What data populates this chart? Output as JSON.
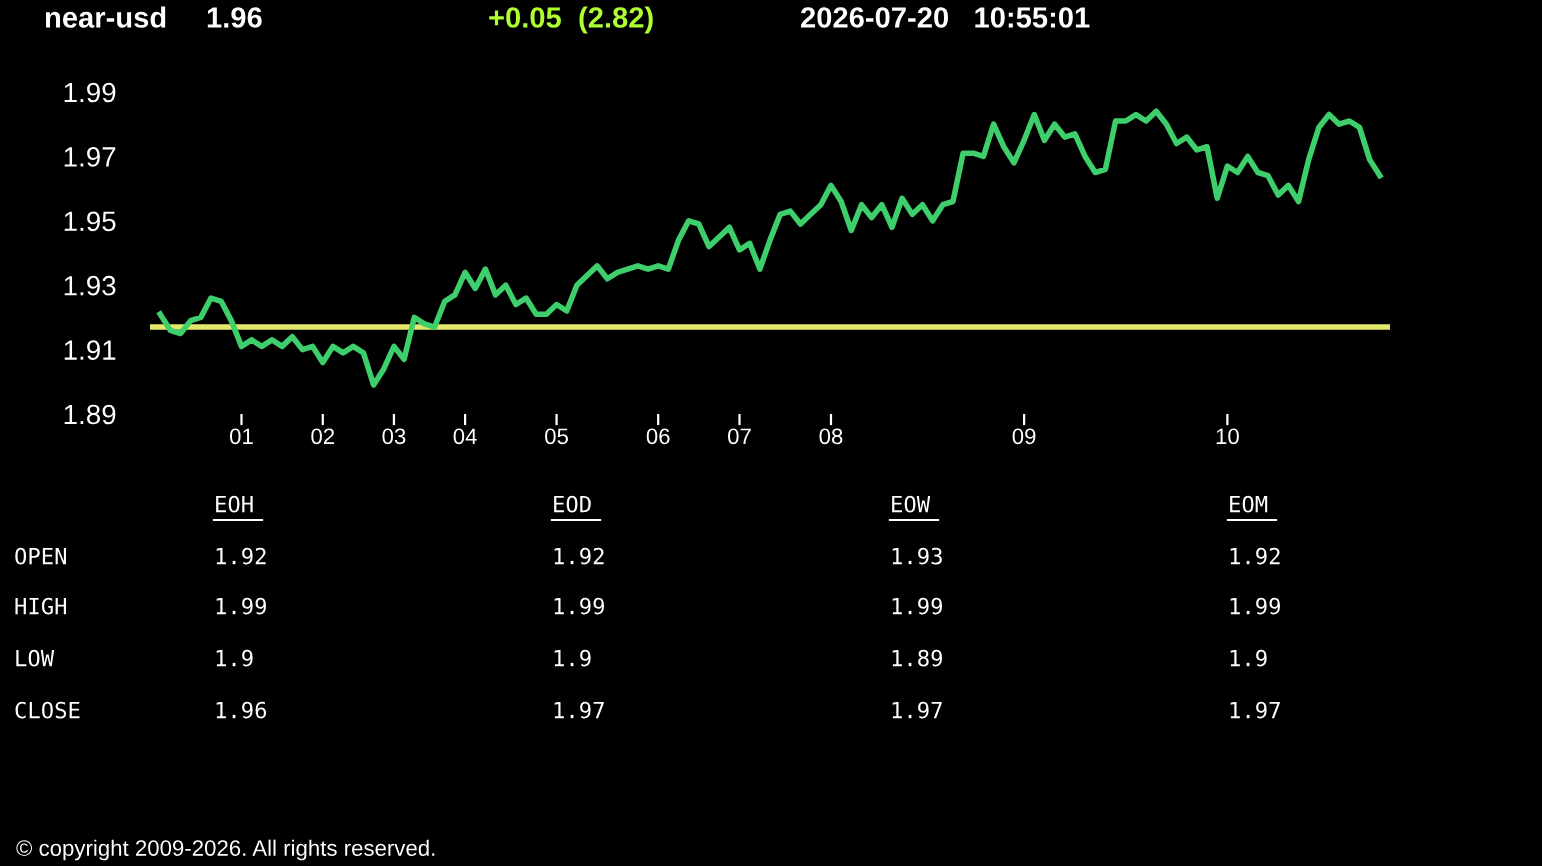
{
  "chart_data": {
    "type": "line",
    "title": "near-usd",
    "categories": [
      null,
      null,
      null,
      null,
      null,
      null,
      null,
      null,
      "01",
      null,
      null,
      null,
      null,
      null,
      null,
      null,
      "02",
      null,
      null,
      null,
      null,
      null,
      null,
      "03",
      null,
      null,
      null,
      null,
      null,
      null,
      "04",
      null,
      null,
      null,
      null,
      null,
      null,
      null,
      null,
      "05",
      null,
      null,
      null,
      null,
      null,
      null,
      null,
      null,
      null,
      "06",
      null,
      null,
      null,
      null,
      null,
      null,
      null,
      "07",
      null,
      null,
      null,
      null,
      null,
      null,
      null,
      null,
      "08",
      null,
      null,
      null,
      null,
      null,
      null,
      null,
      null,
      null,
      null,
      null,
      null,
      null,
      null,
      null,
      null,
      null,
      null,
      "09",
      null,
      null,
      null,
      null,
      null,
      null,
      null,
      null,
      null,
      null,
      null,
      null,
      null,
      null,
      null,
      null,
      null,
      null,
      null,
      "10",
      null,
      null,
      null,
      null,
      null,
      null,
      null,
      null,
      null,
      null,
      null,
      null,
      null,
      null,
      null
    ],
    "series": [
      {
        "color": "#3ecf6c",
        "values": [
          1.921,
          1.916,
          1.915,
          1.919,
          1.92,
          1.926,
          1.925,
          1.919,
          1.911,
          1.913,
          1.911,
          1.913,
          1.911,
          1.914,
          1.91,
          1.911,
          1.906,
          1.911,
          1.909,
          1.911,
          1.909,
          1.899,
          1.904,
          1.911,
          1.907,
          1.92,
          1.918,
          1.917,
          1.925,
          1.927,
          1.934,
          1.929,
          1.935,
          1.927,
          1.93,
          1.924,
          1.926,
          1.921,
          1.921,
          1.924,
          1.922,
          1.93,
          1.933,
          1.936,
          1.932,
          1.934,
          1.935,
          1.936,
          1.935,
          1.936,
          1.935,
          1.944,
          1.95,
          1.949,
          1.942,
          1.945,
          1.948,
          1.941,
          1.943,
          1.935,
          1.944,
          1.952,
          1.953,
          1.949,
          1.952,
          1.955,
          1.961,
          1.956,
          1.947,
          1.955,
          1.951,
          1.955,
          1.948,
          1.957,
          1.952,
          1.955,
          1.95,
          1.955,
          1.956,
          1.971,
          1.971,
          1.97,
          1.98,
          1.973,
          1.968,
          1.975,
          1.983,
          1.975,
          1.98,
          1.976,
          1.977,
          1.97,
          1.965,
          1.966,
          1.981,
          1.981,
          1.983,
          1.981,
          1.984,
          1.98,
          1.974,
          1.976,
          1.972,
          1.973,
          1.957,
          1.967,
          1.965,
          1.97,
          1.965,
          1.964,
          1.958,
          1.961,
          1.956,
          1.969,
          1.979,
          1.983,
          1.98,
          1.981,
          1.979,
          1.969,
          1.964
        ]
      }
    ],
    "ylim": [
      1.89,
      1.99
    ],
    "yticks": [
      1.89,
      1.91,
      1.93,
      1.95,
      1.97,
      1.99
    ],
    "ref_lines": [
      {
        "axis": "y",
        "value": 1.917,
        "color": "#e3e86a"
      }
    ],
    "grid": false,
    "legend": false,
    "marker": "none",
    "line_style": "solid",
    "annotations": [
      "1.96",
      "+0.05  (2.82)",
      "2026-07-20   10:55:01",
      "EOH",
      "EOD",
      "EOW",
      "EOM",
      "OPEN",
      "1.92",
      "1.92",
      "1.93",
      "1.92",
      "HIGH",
      "1.99",
      "1.99",
      "1.99",
      "1.99",
      "LOW",
      "1.9",
      "1.9",
      "1.89",
      "1.9",
      "CLOSE",
      "1.96",
      "1.97",
      "1.97",
      "1.97",
      "© copyright 2009-2026. All rights reserved."
    ]
  }
}
